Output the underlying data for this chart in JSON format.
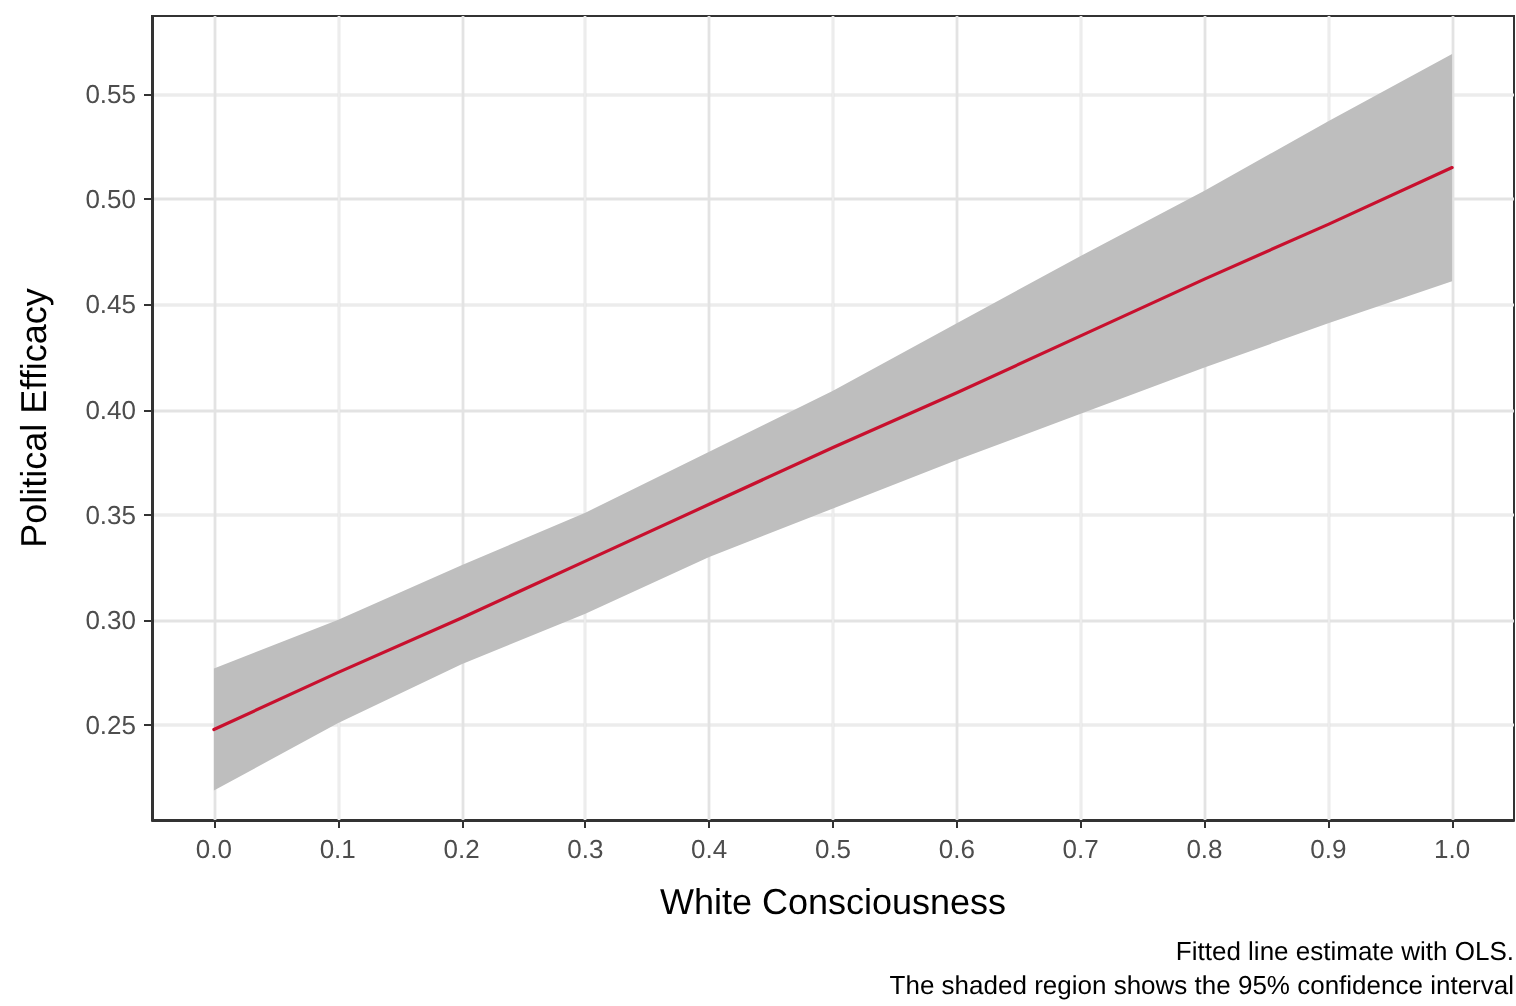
{
  "chart_data": {
    "type": "line",
    "xlabel": "White Consciousness",
    "ylabel": "Political Efficacy",
    "annotations": [
      "Fitted line estimate with OLS.",
      "The shaded region shows the 95% confidence interval"
    ],
    "x": [
      0,
      0.1,
      0.2,
      0.3,
      0.4,
      0.5,
      0.6,
      0.7,
      0.8,
      0.9,
      1.0
    ],
    "series": [
      {
        "color": "#c8102e",
        "values": [
          0.248,
          0.275,
          0.301,
          0.328,
          0.355,
          0.382,
          0.408,
          0.435,
          0.462,
          0.488,
          0.515
        ],
        "lower": [
          0.219,
          0.251,
          0.279,
          0.303,
          0.33,
          0.353,
          0.376,
          0.398,
          0.42,
          0.441,
          0.461
        ],
        "upper": [
          0.277,
          0.3,
          0.326,
          0.351,
          0.38,
          0.409,
          0.441,
          0.473,
          0.504,
          0.537,
          0.569
        ]
      }
    ],
    "xlim": [
      -0.05,
      1.05
    ],
    "ylim": [
      0.205,
      0.587
    ],
    "xticks": [
      {
        "value": 0,
        "label": "0.0"
      },
      {
        "value": 0.1,
        "label": "0.1"
      },
      {
        "value": 0.2,
        "label": "0.2"
      },
      {
        "value": 0.3,
        "label": "0.3"
      },
      {
        "value": 0.4,
        "label": "0.4"
      },
      {
        "value": 0.5,
        "label": "0.5"
      },
      {
        "value": 0.6,
        "label": "0.6"
      },
      {
        "value": 0.7,
        "label": "0.7"
      },
      {
        "value": 0.8,
        "label": "0.8"
      },
      {
        "value": 0.9,
        "label": "0.9"
      },
      {
        "value": 1,
        "label": "1.0"
      }
    ],
    "yticks": [
      0.25,
      {
        "value": 0.3,
        "label": "0.30"
      },
      0.35,
      {
        "value": 0.4,
        "label": "0.40"
      },
      0.45,
      {
        "value": 0.5,
        "label": "0.50"
      },
      0.55
    ],
    "grid": true,
    "marker": "none",
    "line_style": "solid"
  }
}
